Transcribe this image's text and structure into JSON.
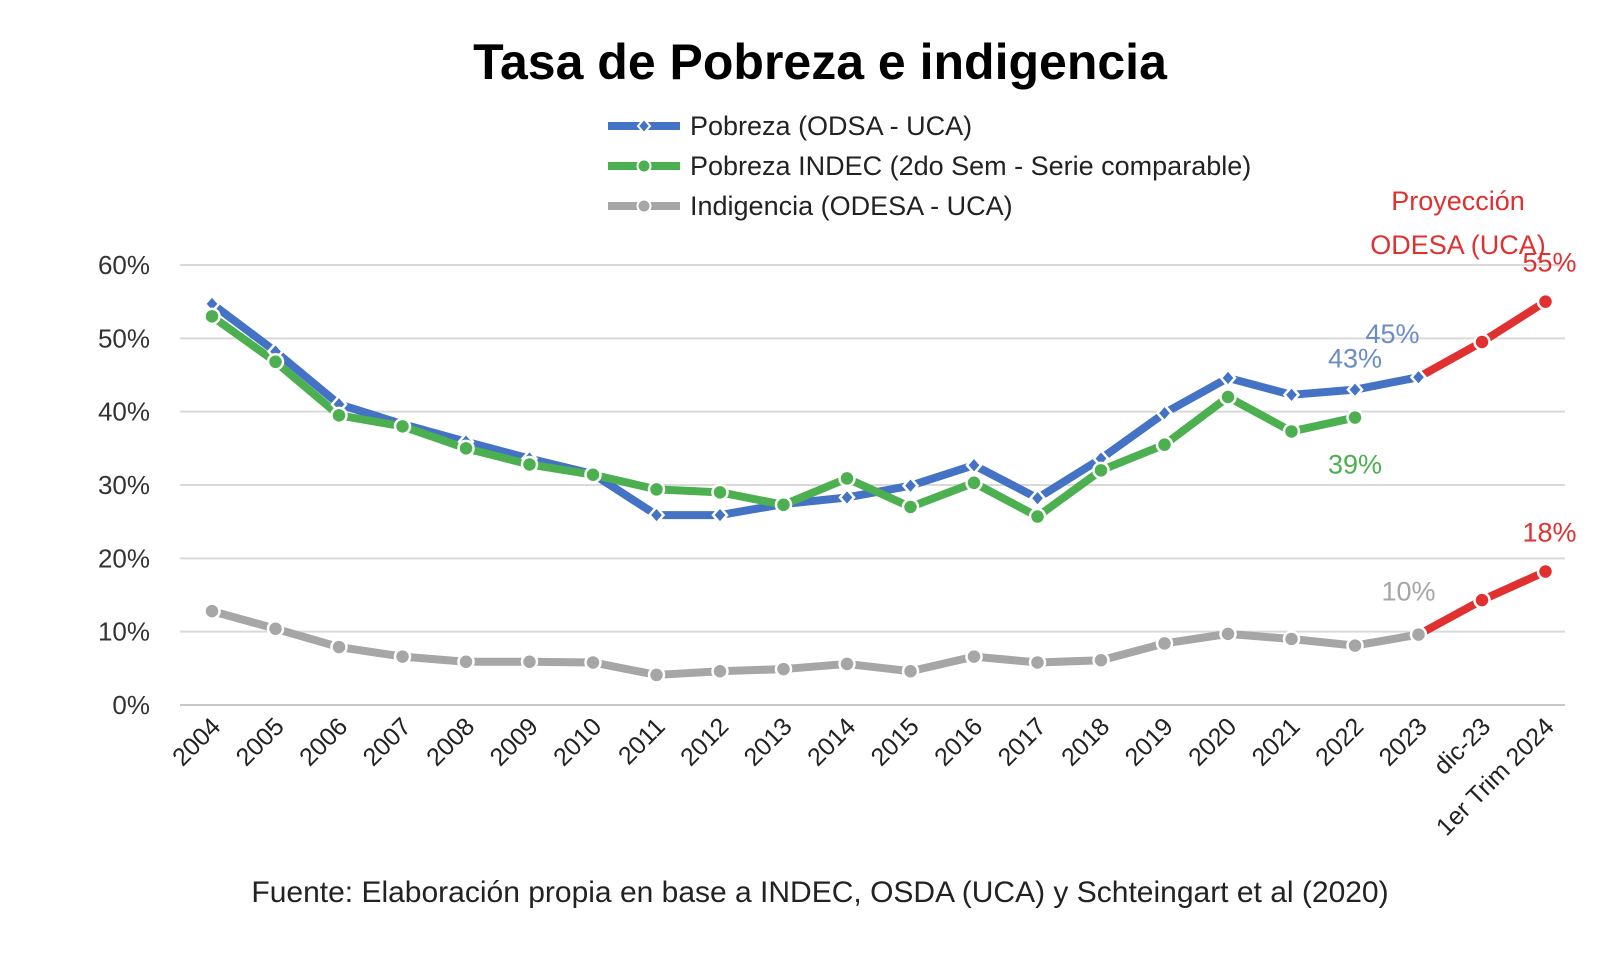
{
  "chart_data": {
    "type": "line",
    "title": "Tasa de Pobreza e indigencia",
    "categories": [
      "2004",
      "2005",
      "2006",
      "2007",
      "2008",
      "2009",
      "2010",
      "2011",
      "2012",
      "2013",
      "2014",
      "2015",
      "2016",
      "2017",
      "2018",
      "2019",
      "2020",
      "2021",
      "2022",
      "2023",
      "dic-23",
      "1er Trim 2024"
    ],
    "ylim": [
      0,
      60
    ],
    "yticks": [
      "0%",
      "10%",
      "20%",
      "30%",
      "40%",
      "50%",
      "60%"
    ],
    "series": [
      {
        "name": "Pobreza (ODSA - UCA)",
        "color": "#4472c4",
        "marker": "diamond",
        "values": [
          54.7,
          48.2,
          41.0,
          38.3,
          35.9,
          33.6,
          31.5,
          25.9,
          25.9,
          27.4,
          28.3,
          29.9,
          32.7,
          28.2,
          33.6,
          39.8,
          44.6,
          42.3,
          43.0,
          44.7,
          null,
          null
        ]
      },
      {
        "name": "Pobreza INDEC (2do Sem - Serie comparable)",
        "color": "#4caf50",
        "marker": "circle",
        "values": [
          53.0,
          46.8,
          39.5,
          38.0,
          35.0,
          32.8,
          31.4,
          29.4,
          29.0,
          27.3,
          30.9,
          27.0,
          30.3,
          25.7,
          32.0,
          35.5,
          42.0,
          37.3,
          39.2,
          null,
          null,
          null
        ]
      },
      {
        "name": "Indigencia (ODESA - UCA)",
        "color": "#a6a6a6",
        "marker": "circle",
        "values": [
          12.8,
          10.4,
          7.9,
          6.6,
          5.9,
          5.9,
          5.8,
          4.1,
          4.6,
          4.9,
          5.6,
          4.6,
          6.6,
          5.8,
          6.1,
          8.4,
          9.7,
          9.0,
          8.1,
          9.6,
          null,
          null
        ]
      }
    ],
    "projection": {
      "label_line1": "Proyección",
      "label_line2": "ODESA (UCA)",
      "color": "#e03030",
      "pobreza": {
        "categories": [
          "2023",
          "dic-23",
          "1er Trim 2024"
        ],
        "values": [
          44.7,
          49.5,
          55.0
        ]
      },
      "indigencia": {
        "categories": [
          "2023",
          "dic-23",
          "1er Trim 2024"
        ],
        "values": [
          9.6,
          14.3,
          18.2
        ]
      }
    },
    "annotations": [
      {
        "text": "43%",
        "series": "pobreza",
        "category": "2022",
        "color": "#6b8cc7"
      },
      {
        "text": "45%",
        "series": "pobreza",
        "category": "2023",
        "color": "#6b8cc7"
      },
      {
        "text": "55%",
        "series": "projection",
        "category": "1er Trim 2024",
        "color": "#e03030"
      },
      {
        "text": "39%",
        "series": "indec",
        "category": "2022",
        "color": "#4caf50"
      },
      {
        "text": "10%",
        "series": "indigencia",
        "category": "2023",
        "color": "#a6a6a6"
      },
      {
        "text": "18%",
        "series": "projection",
        "category": "1er Trim 2024",
        "color": "#e03030"
      }
    ],
    "source": "Fuente: Elaboración propia en base a INDEC, OSDA (UCA) y  Schteingart et al (2020)"
  }
}
